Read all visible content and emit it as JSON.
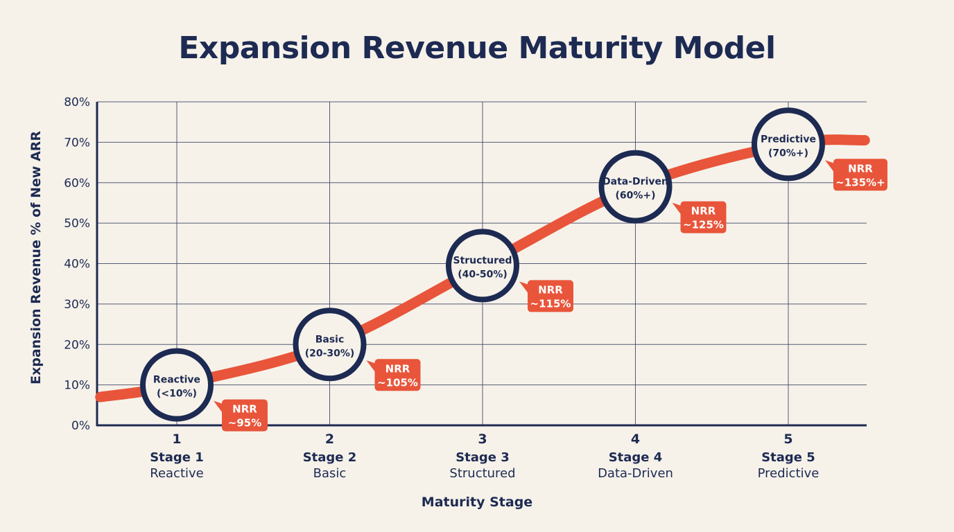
{
  "chart_data": {
    "type": "line",
    "title": "Expansion Revenue Maturity Model",
    "xlabel": "Maturity Stage",
    "ylabel": "Expansion Revenue % of New ARR",
    "ylim": [
      0,
      80
    ],
    "yticks": [
      "0%",
      "10%",
      "20%",
      "30%",
      "40%",
      "50%",
      "60%",
      "70%",
      "80%"
    ],
    "grid": true,
    "categories": [
      {
        "number": "1",
        "stage": "Stage 1",
        "name": "Reactive"
      },
      {
        "number": "2",
        "stage": "Stage 2",
        "name": "Basic"
      },
      {
        "number": "3",
        "stage": "Stage 3",
        "name": "Structured"
      },
      {
        "number": "4",
        "stage": "Stage 4",
        "name": "Data-Driven"
      },
      {
        "number": "5",
        "stage": "Stage 5",
        "name": "Predictive"
      }
    ],
    "curve": {
      "x": [
        0.5,
        1,
        2,
        3,
        4,
        5,
        5.5
      ],
      "y": [
        7,
        10,
        20,
        39.5,
        59,
        69.5,
        70.5
      ]
    },
    "points": [
      {
        "x": 1,
        "y": 10,
        "label_line1": "Reactive",
        "label_line2": "(<10%)",
        "nrr_label": "NRR",
        "nrr_value": "~95%"
      },
      {
        "x": 2,
        "y": 20,
        "label_line1": "Basic",
        "label_line2": "(20-30%)",
        "nrr_label": "NRR",
        "nrr_value": "~105%"
      },
      {
        "x": 3,
        "y": 39.5,
        "label_line1": "Structured",
        "label_line2": "(40-50%)",
        "nrr_label": "NRR",
        "nrr_value": "~115%"
      },
      {
        "x": 4,
        "y": 59,
        "label_line1": "Data-Driven",
        "label_line2": "(60%+)",
        "nrr_label": "NRR",
        "nrr_value": "~125%"
      },
      {
        "x": 5,
        "y": 69.5,
        "label_line1": "Predictive",
        "label_line2": "(70%+)",
        "nrr_label": "NRR",
        "nrr_value": "~135%+"
      }
    ],
    "colors": {
      "line": "#e8553a",
      "navy": "#1d2a52",
      "grid": "#3a4160",
      "background": "#f6f2ea"
    }
  }
}
